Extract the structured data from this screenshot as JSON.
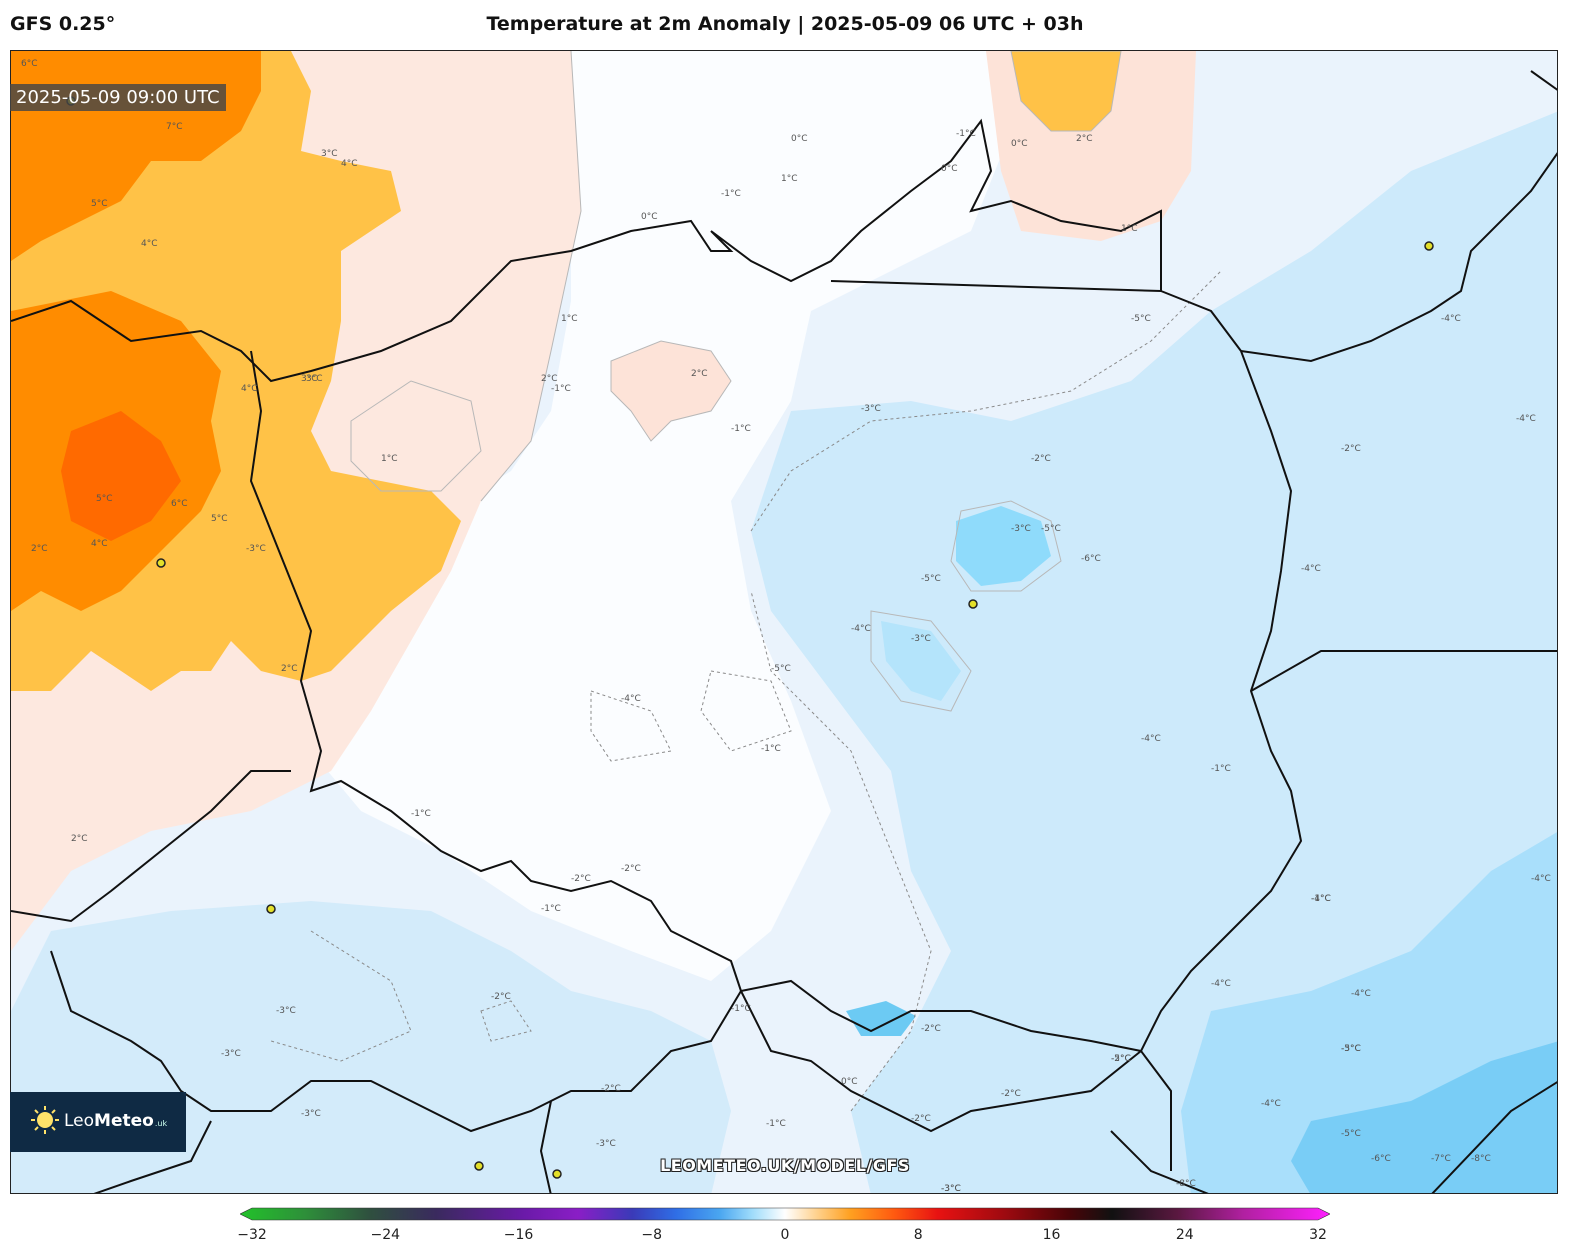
{
  "header": {
    "model": "GFS 0.25°",
    "title": "Temperature at 2m Anomaly | 2025-05-09 06 UTC + 03h"
  },
  "map": {
    "valid_time": "2025-05-09 09:00 UTC",
    "watermark": "LEOMETEO.UK/MODEL/GFS",
    "contour_labels": [
      "6°C",
      "7°C",
      "5°C",
      "4°C",
      "4°C",
      "3°C",
      "1°C",
      "2°C",
      "0°C",
      "1°C",
      "2°C",
      "1°C",
      "0°C",
      "-1°C",
      "0°C",
      "-1°C",
      "0°C",
      "-1°C",
      "-1°C",
      "3°C",
      "4°C",
      "2°C",
      "1°C",
      "-2°C",
      "-3°C",
      "-3°C",
      "-5°C",
      "-6°C",
      "-5°C",
      "-4°C",
      "-3°C",
      "-4°C",
      "-5°C",
      "-4°C",
      "-1°C",
      "-2°C",
      "-1°C",
      "-1°C",
      "-4°C",
      "-4°C",
      "-5°C",
      "-4°C",
      "-4°C",
      "5°C",
      "6°C",
      "5°C",
      "4°C",
      "-3°C",
      "3°C",
      "2°C",
      "2°C",
      "-1°C",
      "-2°C",
      "-1°C",
      "-2°C",
      "-2°C",
      "-3°C",
      "-3°C",
      "-3°C",
      "-2°C",
      "-1°C",
      "0°C",
      "-1°C",
      "-3°C",
      "-4°C",
      "-4°C",
      "-4°C",
      "-5°C",
      "-6°C",
      "-7°C",
      "-8°C",
      "-8°C",
      "-5°C",
      "-2°C",
      "-3°C",
      "-2°C",
      "-5°C",
      "-4°C",
      "-3°C",
      "-2°C",
      "-2°C",
      "2°C",
      "-3°C"
    ]
  },
  "logo": {
    "brand_light": "Leo",
    "brand_bold": "Meteo",
    "suffix": ".uk"
  },
  "colorbar": {
    "min": -32,
    "max": 32,
    "ticks": [
      "−32",
      "−24",
      "−16",
      "−8",
      "0",
      "8",
      "16",
      "24",
      "32"
    ]
  },
  "colors": {
    "warm_strong": "#ff7a00",
    "warm": "#ffb52e",
    "warm_light": "#fde3d8",
    "neutral": "#ffffff",
    "cool_light": "#e6f0fb",
    "cool": "#c9e8fb",
    "cool_strong": "#8bdcfb",
    "cool_deep": "#5ec4f5",
    "border": "#111111"
  }
}
